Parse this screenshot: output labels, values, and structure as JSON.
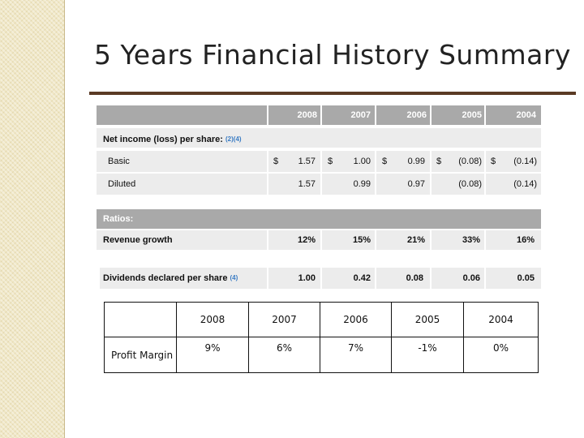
{
  "title": "5 Years Financial History Summary",
  "years": [
    "2008",
    "2007",
    "2006",
    "2005",
    "2004"
  ],
  "net_income": {
    "label": "Net income (loss) per share:",
    "note": "(2)(4)",
    "basic": {
      "label": "Basic",
      "values": [
        "1.57",
        "1.00",
        "0.99",
        "(0.08)",
        "(0.14)"
      ]
    },
    "diluted": {
      "label": "Diluted",
      "values": [
        "1.57",
        "0.99",
        "0.97",
        "(0.08)",
        "(0.14)"
      ]
    },
    "currency": "$"
  },
  "ratios": {
    "header": "Ratios:",
    "revenue_growth": {
      "label": "Revenue growth",
      "values": [
        "12%",
        "15%",
        "21%",
        "33%",
        "16%"
      ]
    }
  },
  "dividends": {
    "label": "Dividends declared per share",
    "note": "(4)",
    "values": [
      "1.00",
      "0.42",
      "0.08",
      "0.06",
      "0.05"
    ]
  },
  "profit_margin": {
    "label": "Profit Margin",
    "values": [
      "9%",
      "6%",
      "7%",
      "-1%",
      "0%"
    ]
  }
}
